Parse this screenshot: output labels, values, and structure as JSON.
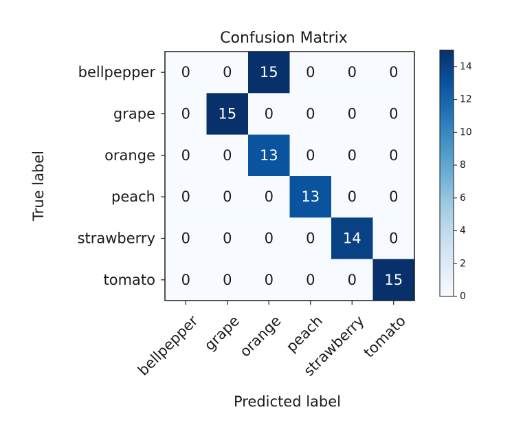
{
  "chart_data": {
    "type": "heatmap",
    "title": "Confusion Matrix",
    "xlabel": "Predicted label",
    "ylabel": "True label",
    "x_categories": [
      "bellpepper",
      "grape",
      "orange",
      "peach",
      "strawberry",
      "tomato"
    ],
    "y_categories": [
      "bellpepper",
      "grape",
      "orange",
      "peach",
      "strawberry",
      "tomato"
    ],
    "values": [
      [
        0,
        0,
        15,
        0,
        0,
        0
      ],
      [
        0,
        15,
        0,
        0,
        0,
        0
      ],
      [
        0,
        0,
        13,
        0,
        0,
        0
      ],
      [
        0,
        0,
        0,
        13,
        0,
        0
      ],
      [
        0,
        0,
        0,
        0,
        14,
        0
      ],
      [
        0,
        0,
        0,
        0,
        0,
        15
      ]
    ],
    "colormap": "Blues",
    "colorbar": {
      "range": [
        0,
        15
      ],
      "ticks": [
        0,
        2,
        4,
        6,
        8,
        10,
        12,
        14
      ]
    }
  }
}
